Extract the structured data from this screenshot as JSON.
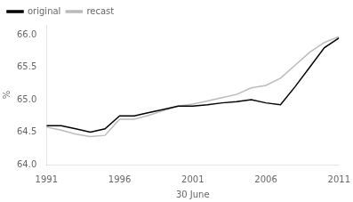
{
  "chart_data": {
    "type": "line",
    "x": [
      1991,
      1992,
      1993,
      1994,
      1995,
      1996,
      1997,
      1998,
      1999,
      2000,
      2001,
      2002,
      2003,
      2004,
      2005,
      2006,
      2007,
      2008,
      2009,
      2010,
      2011
    ],
    "series": [
      {
        "name": "original",
        "color": "#000000",
        "values": [
          64.6,
          64.6,
          64.55,
          64.5,
          64.55,
          64.75,
          64.75,
          64.8,
          64.85,
          64.9,
          64.9,
          64.92,
          64.95,
          64.97,
          65.0,
          64.95,
          64.92,
          65.2,
          65.5,
          65.8,
          65.95
        ]
      },
      {
        "name": "recast",
        "color": "#bbbbbb",
        "values": [
          64.58,
          64.53,
          64.47,
          64.43,
          64.45,
          64.7,
          64.7,
          64.76,
          64.83,
          64.9,
          64.93,
          64.98,
          65.03,
          65.08,
          65.18,
          65.22,
          65.33,
          65.53,
          65.73,
          65.88,
          65.97
        ]
      }
    ],
    "xlabel": "30 June",
    "ylabel": "%",
    "xlim": [
      1991,
      2011
    ],
    "xticks": [
      1991,
      1996,
      2001,
      2006,
      2011
    ],
    "ylim": [
      64.0,
      66.15
    ],
    "yticks": [
      {
        "value": 64.0,
        "label": "64.0"
      },
      {
        "value": 64.5,
        "label": "64.5"
      },
      {
        "value": 65.0,
        "label": "65.0"
      },
      {
        "value": 65.5,
        "label": "65.5"
      },
      {
        "value": 66.0,
        "label": "66.0"
      }
    ],
    "grid": false,
    "legend": "upper left"
  }
}
